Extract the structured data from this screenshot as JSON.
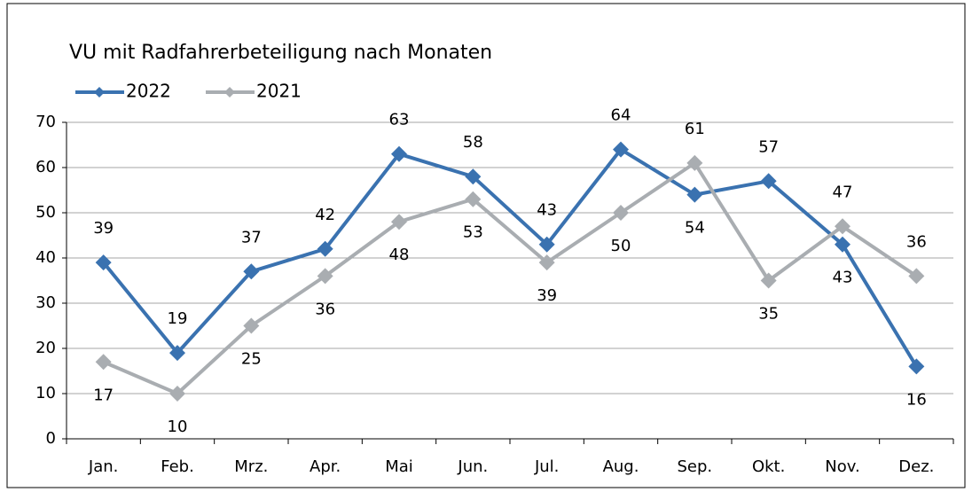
{
  "chart_data": {
    "type": "line",
    "title": "VU mit Radfahrerbeteiligung nach Monaten",
    "categories": [
      "Jan.",
      "Feb.",
      "Mrz.",
      "Apr.",
      "Mai",
      "Jun.",
      "Jul.",
      "Aug.",
      "Sep.",
      "Okt.",
      "Nov.",
      "Dez."
    ],
    "series": [
      {
        "name": "2022",
        "color": "#3a72b0",
        "values": [
          39,
          19,
          37,
          42,
          63,
          58,
          43,
          64,
          54,
          57,
          43,
          16
        ]
      },
      {
        "name": "2021",
        "color": "#a9adb1",
        "values": [
          17,
          10,
          25,
          36,
          48,
          53,
          39,
          50,
          61,
          35,
          47,
          36
        ]
      }
    ],
    "ylim": [
      0,
      70
    ],
    "yticks": [
      0,
      10,
      20,
      30,
      40,
      50,
      60,
      70
    ],
    "grid": true,
    "legend": "top-left"
  }
}
